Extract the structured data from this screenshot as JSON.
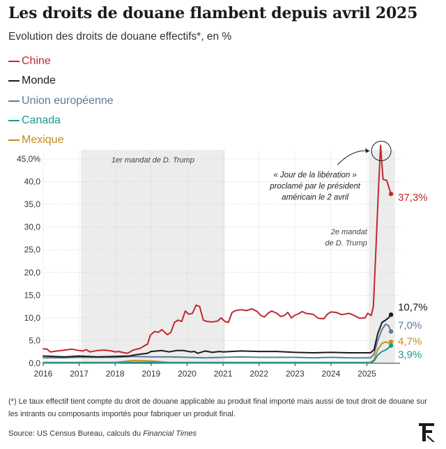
{
  "header": {
    "title": "Les droits de douane flambent depuis avril 2025",
    "subtitle": "Evolution des droits de douane effectifs*, en %"
  },
  "chart_data": {
    "type": "line",
    "title": "Les droits de douane flambent depuis avril 2025",
    "subtitle": "Evolution des droits de douane effectifs*, en %",
    "xlabel": "",
    "ylabel": "",
    "xlim": [
      2016.0,
      2025.92
    ],
    "ylim": [
      0,
      47
    ],
    "y_ticks": [
      0,
      5,
      10,
      15,
      20,
      25,
      30,
      35,
      40,
      45
    ],
    "y_tick_labels": [
      "0,0",
      "5,0",
      "10,0",
      "15,0",
      "20,0",
      "25,0",
      "30,0",
      "35,0",
      "40,0",
      "45,0%"
    ],
    "x_ticks": [
      2016,
      2017,
      2018,
      2019,
      2020,
      2021,
      2022,
      2023,
      2024,
      2025
    ],
    "x_tick_labels": [
      "2016",
      "2017",
      "2018",
      "2019",
      "2020",
      "2021",
      "2022",
      "2023",
      "2024",
      "2025"
    ],
    "grid": true,
    "legend_position": "top-left",
    "shaded_periods": [
      {
        "start": 2017.05,
        "end": 2021.05,
        "label": "1er mandat de D. Trump"
      },
      {
        "start": 2025.05,
        "end": 2025.78,
        "label_lines": [
          "2e mandat",
          "de D. Trump"
        ]
      }
    ],
    "series": [
      {
        "name": "Chine",
        "color": "#c1272d",
        "end_label": "37,3%",
        "points": [
          [
            2016.0,
            3.2
          ],
          [
            2016.1,
            3.1
          ],
          [
            2016.2,
            2.5
          ],
          [
            2016.4,
            2.7
          ],
          [
            2016.6,
            2.9
          ],
          [
            2016.8,
            3.1
          ],
          [
            2017.0,
            2.8
          ],
          [
            2017.1,
            2.7
          ],
          [
            2017.2,
            3.0
          ],
          [
            2017.3,
            2.5
          ],
          [
            2017.5,
            2.8
          ],
          [
            2017.7,
            2.9
          ],
          [
            2017.9,
            2.7
          ],
          [
            2018.0,
            2.5
          ],
          [
            2018.1,
            2.6
          ],
          [
            2018.2,
            2.4
          ],
          [
            2018.35,
            2.2
          ],
          [
            2018.5,
            2.9
          ],
          [
            2018.6,
            3.1
          ],
          [
            2018.7,
            3.3
          ],
          [
            2018.8,
            3.8
          ],
          [
            2018.9,
            4.2
          ],
          [
            2018.98,
            6.2
          ],
          [
            2019.1,
            7.0
          ],
          [
            2019.2,
            6.8
          ],
          [
            2019.3,
            7.4
          ],
          [
            2019.45,
            6.3
          ],
          [
            2019.55,
            6.8
          ],
          [
            2019.65,
            9.0
          ],
          [
            2019.75,
            9.5
          ],
          [
            2019.85,
            9.2
          ],
          [
            2019.95,
            11.5
          ],
          [
            2020.05,
            10.8
          ],
          [
            2020.15,
            11.0
          ],
          [
            2020.25,
            12.8
          ],
          [
            2020.35,
            12.5
          ],
          [
            2020.45,
            9.5
          ],
          [
            2020.55,
            9.2
          ],
          [
            2020.7,
            9.1
          ],
          [
            2020.85,
            9.3
          ],
          [
            2020.95,
            10.0
          ],
          [
            2021.05,
            9.2
          ],
          [
            2021.15,
            9.0
          ],
          [
            2021.25,
            11.2
          ],
          [
            2021.35,
            11.6
          ],
          [
            2021.5,
            11.8
          ],
          [
            2021.65,
            11.6
          ],
          [
            2021.8,
            12.0
          ],
          [
            2021.95,
            11.4
          ],
          [
            2022.05,
            10.5
          ],
          [
            2022.15,
            10.2
          ],
          [
            2022.25,
            11.0
          ],
          [
            2022.35,
            11.5
          ],
          [
            2022.5,
            11.0
          ],
          [
            2022.6,
            10.3
          ],
          [
            2022.7,
            10.5
          ],
          [
            2022.8,
            11.2
          ],
          [
            2022.9,
            10.0
          ],
          [
            2023.0,
            10.6
          ],
          [
            2023.1,
            10.9
          ],
          [
            2023.2,
            11.4
          ],
          [
            2023.3,
            11.0
          ],
          [
            2023.5,
            10.8
          ],
          [
            2023.65,
            9.9
          ],
          [
            2023.8,
            9.8
          ],
          [
            2023.9,
            10.8
          ],
          [
            2024.0,
            11.3
          ],
          [
            2024.15,
            11.2
          ],
          [
            2024.3,
            10.7
          ],
          [
            2024.5,
            11.0
          ],
          [
            2024.65,
            10.5
          ],
          [
            2024.8,
            9.9
          ],
          [
            2024.95,
            10.0
          ],
          [
            2025.02,
            11.0
          ],
          [
            2025.12,
            10.5
          ],
          [
            2025.18,
            12.5
          ],
          [
            2025.25,
            25.0
          ],
          [
            2025.32,
            38.0
          ],
          [
            2025.38,
            48.0
          ],
          [
            2025.45,
            40.5
          ],
          [
            2025.55,
            40.3
          ],
          [
            2025.62,
            38.5
          ],
          [
            2025.67,
            37.3
          ]
        ]
      },
      {
        "name": "Monde",
        "color": "#1a1a1a",
        "end_label": "10,7%",
        "points": [
          [
            2016.0,
            1.6
          ],
          [
            2016.3,
            1.5
          ],
          [
            2016.6,
            1.4
          ],
          [
            2017.0,
            1.6
          ],
          [
            2017.5,
            1.4
          ],
          [
            2018.0,
            1.5
          ],
          [
            2018.4,
            1.6
          ],
          [
            2018.6,
            1.9
          ],
          [
            2018.9,
            2.2
          ],
          [
            2019.0,
            2.6
          ],
          [
            2019.3,
            2.8
          ],
          [
            2019.5,
            2.5
          ],
          [
            2019.7,
            2.8
          ],
          [
            2019.9,
            2.8
          ],
          [
            2020.1,
            2.5
          ],
          [
            2020.2,
            2.6
          ],
          [
            2020.3,
            2.2
          ],
          [
            2020.5,
            2.7
          ],
          [
            2020.7,
            2.4
          ],
          [
            2020.9,
            2.6
          ],
          [
            2021.0,
            2.5
          ],
          [
            2021.5,
            2.7
          ],
          [
            2022.0,
            2.6
          ],
          [
            2022.5,
            2.6
          ],
          [
            2023.0,
            2.4
          ],
          [
            2023.5,
            2.3
          ],
          [
            2024.0,
            2.4
          ],
          [
            2024.5,
            2.3
          ],
          [
            2025.0,
            2.3
          ],
          [
            2025.1,
            2.3
          ],
          [
            2025.2,
            3.0
          ],
          [
            2025.3,
            6.5
          ],
          [
            2025.42,
            9.0
          ],
          [
            2025.52,
            9.5
          ],
          [
            2025.6,
            10.0
          ],
          [
            2025.67,
            10.7
          ]
        ]
      },
      {
        "name": "Union européenne",
        "color": "#5b7a98",
        "end_label": "7,0%",
        "points": [
          [
            2016.0,
            1.2
          ],
          [
            2016.5,
            1.2
          ],
          [
            2017.0,
            1.3
          ],
          [
            2017.5,
            1.3
          ],
          [
            2018.0,
            1.3
          ],
          [
            2018.5,
            1.5
          ],
          [
            2019.0,
            1.4
          ],
          [
            2019.5,
            1.4
          ],
          [
            2020.0,
            1.3
          ],
          [
            2020.5,
            1.2
          ],
          [
            2021.0,
            1.3
          ],
          [
            2021.5,
            1.4
          ],
          [
            2022.0,
            1.3
          ],
          [
            2022.5,
            1.3
          ],
          [
            2023.0,
            1.3
          ],
          [
            2023.5,
            1.2
          ],
          [
            2024.0,
            1.3
          ],
          [
            2024.5,
            1.2
          ],
          [
            2025.0,
            1.2
          ],
          [
            2025.1,
            1.2
          ],
          [
            2025.2,
            2.0
          ],
          [
            2025.3,
            5.0
          ],
          [
            2025.42,
            7.5
          ],
          [
            2025.52,
            8.6
          ],
          [
            2025.6,
            8.3
          ],
          [
            2025.67,
            7.0
          ]
        ]
      },
      {
        "name": "Canada",
        "color": "#1a9a8e",
        "end_label": "3,9%",
        "points": [
          [
            2016.0,
            0.1
          ],
          [
            2017.0,
            0.1
          ],
          [
            2018.0,
            0.1
          ],
          [
            2018.5,
            0.2
          ],
          [
            2019.0,
            0.2
          ],
          [
            2019.5,
            0.1
          ],
          [
            2020.0,
            0.1
          ],
          [
            2021.0,
            0.1
          ],
          [
            2022.0,
            0.1
          ],
          [
            2023.0,
            0.1
          ],
          [
            2024.0,
            0.1
          ],
          [
            2025.0,
            0.1
          ],
          [
            2025.1,
            0.1
          ],
          [
            2025.2,
            0.5
          ],
          [
            2025.3,
            1.8
          ],
          [
            2025.42,
            2.6
          ],
          [
            2025.52,
            2.9
          ],
          [
            2025.6,
            3.4
          ],
          [
            2025.67,
            3.9
          ]
        ]
      },
      {
        "name": "Mexique",
        "color": "#c98a1c",
        "end_label": "4,7%",
        "points": [
          [
            2016.0,
            0.2
          ],
          [
            2017.0,
            0.2
          ],
          [
            2018.0,
            0.2
          ],
          [
            2018.5,
            0.6
          ],
          [
            2019.0,
            0.5
          ],
          [
            2019.5,
            0.2
          ],
          [
            2020.0,
            0.2
          ],
          [
            2021.0,
            0.2
          ],
          [
            2022.0,
            0.2
          ],
          [
            2023.0,
            0.2
          ],
          [
            2024.0,
            0.2
          ],
          [
            2025.0,
            0.2
          ],
          [
            2025.1,
            0.2
          ],
          [
            2025.2,
            0.8
          ],
          [
            2025.3,
            3.0
          ],
          [
            2025.42,
            4.4
          ],
          [
            2025.52,
            4.7
          ],
          [
            2025.6,
            4.5
          ],
          [
            2025.67,
            4.7
          ]
        ]
      }
    ],
    "annotations": [
      {
        "id": "liberation",
        "lines": [
          "« Jour de la libération »",
          "proclamé par le président",
          "américain le 2 avril"
        ],
        "x": 2025.38,
        "y": 48.0
      }
    ]
  },
  "footnote": "(*) Le taux effectif tient compte du droit de douane applicable au produit final importé mais aussi de tout droit de douane sur les intrants ou composants importés pour fabriquer un produit final.",
  "source": {
    "prefix": "Source: US Census Bureau, calculs du ",
    "italic": "Financial Times"
  }
}
